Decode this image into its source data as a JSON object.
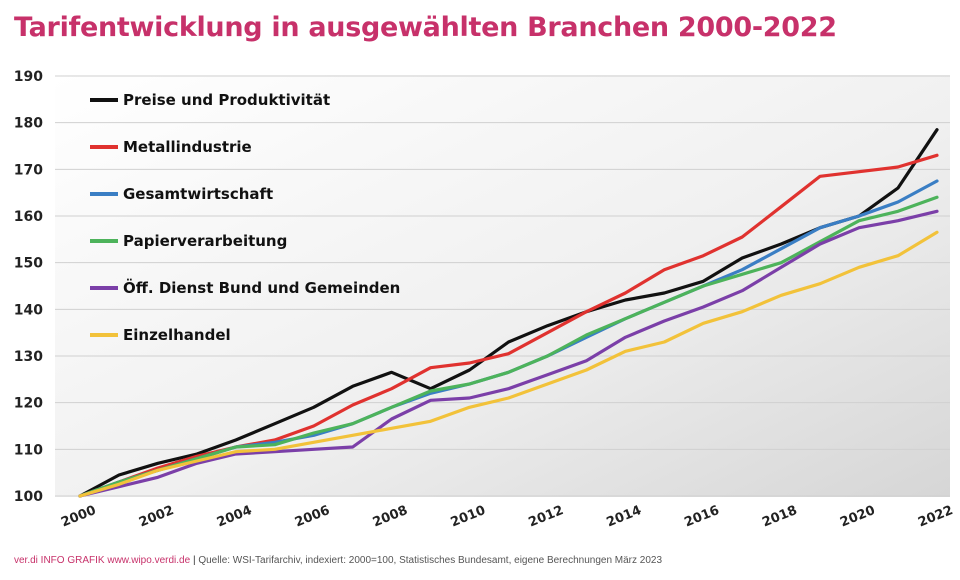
{
  "colors": {
    "title": "#c7316a",
    "grid": "#d0d0d0",
    "background_light": "#ffffff",
    "background_dark": "#d9d9d9"
  },
  "footer": {
    "brand": "ver.di INFO GRAFIK www.wipo.verdi.de",
    "source": "Quelle: WSI-Tarifarchiv, indexiert: 2000=100, Statistisches Bundesamt, eigene Berechnungen März 2023"
  },
  "chart_data": {
    "type": "line",
    "title": "Tarifentwicklung in ausgewählten Branchen 2000-2022",
    "xlabel": "",
    "ylabel": "",
    "xlim": [
      2000,
      2022
    ],
    "ylim": [
      100,
      190
    ],
    "yticks": [
      100,
      110,
      120,
      130,
      140,
      150,
      160,
      170,
      180,
      190
    ],
    "xticks": [
      2000,
      2002,
      2004,
      2006,
      2008,
      2010,
      2012,
      2014,
      2016,
      2018,
      2020,
      2022
    ],
    "grid": true,
    "legend_position": "top-left",
    "x": [
      2000,
      2001,
      2002,
      2003,
      2004,
      2005,
      2006,
      2007,
      2008,
      2009,
      2010,
      2011,
      2012,
      2013,
      2014,
      2015,
      2016,
      2017,
      2018,
      2019,
      2020,
      2021,
      2022
    ],
    "series": [
      {
        "name": "Preise und Produktivität",
        "color": "#111111",
        "values": [
          100,
          104.5,
          107,
          109,
          112,
          115.5,
          119,
          123.5,
          126.5,
          123,
          127,
          133,
          136.5,
          139.5,
          142,
          143.5,
          146,
          151,
          154,
          157.5,
          160,
          166,
          178.5
        ]
      },
      {
        "name": "Metallindustrie",
        "color": "#e0322f",
        "values": [
          100,
          103,
          106,
          108.5,
          110.5,
          112,
          115,
          119.5,
          123,
          127.5,
          128.5,
          130.5,
          135,
          139.5,
          143.5,
          148.5,
          151.5,
          155.5,
          162,
          168.5,
          169.5,
          170.5,
          173
        ]
      },
      {
        "name": "Gesamtwirtschaft",
        "color": "#3a7ec4",
        "values": [
          100,
          103,
          105.5,
          108,
          110.5,
          111.5,
          113,
          115.5,
          119,
          122,
          124,
          126.5,
          130,
          134,
          138,
          141.5,
          145,
          148.5,
          153,
          157.5,
          160,
          163,
          167.5
        ]
      },
      {
        "name": "Papierverarbeitung",
        "color": "#4db35b",
        "values": [
          100,
          103,
          105.5,
          108,
          110.5,
          111,
          113.5,
          115.5,
          119,
          122.5,
          124,
          126.5,
          130,
          134.5,
          138,
          141.5,
          145,
          147.5,
          150,
          154.5,
          159,
          161,
          164
        ]
      },
      {
        "name": "Öff. Dienst Bund und Gemeinden",
        "color": "#7b3fa8",
        "values": [
          100,
          102,
          104,
          107,
          109,
          109.5,
          110,
          110.5,
          116.5,
          120.5,
          121,
          123,
          126,
          129,
          134,
          137.5,
          140.5,
          144,
          149,
          154,
          157.5,
          159,
          161
        ]
      },
      {
        "name": "Einzelhandel",
        "color": "#f2c23a",
        "values": [
          100,
          102.5,
          105.5,
          107.5,
          109.5,
          110,
          111.5,
          113,
          114.5,
          116,
          119,
          121,
          124,
          127,
          131,
          133,
          137,
          139.5,
          143,
          145.5,
          149,
          151.5,
          156.5
        ]
      }
    ]
  }
}
